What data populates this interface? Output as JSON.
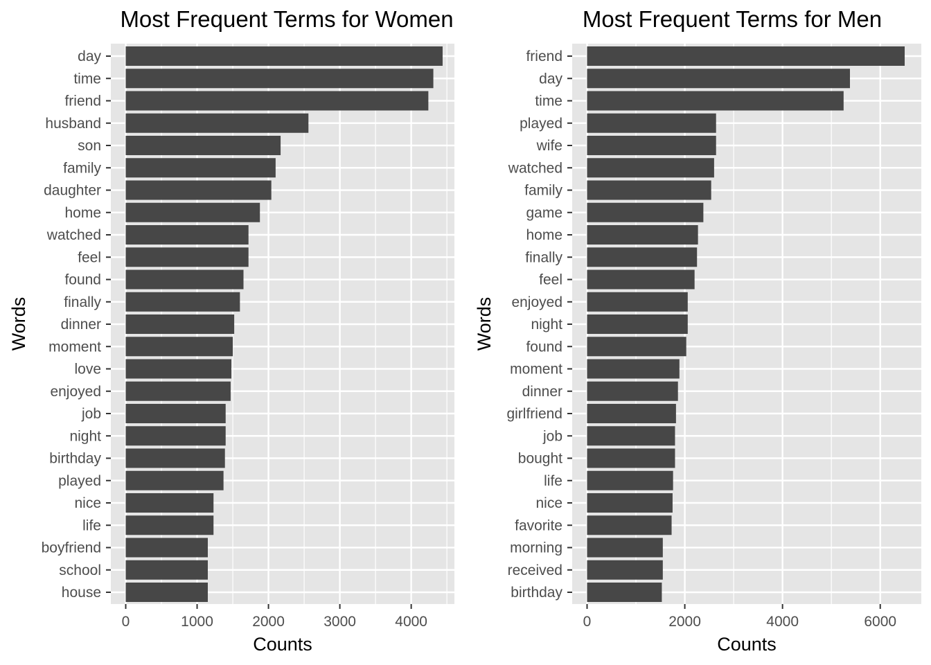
{
  "chart_data": [
    {
      "type": "bar",
      "orientation": "horizontal",
      "title": "Most Frequent Terms for Women",
      "xlabel": "Counts",
      "ylabel": "Words",
      "xlim": [
        0,
        4450
      ],
      "xticks": [
        0,
        1000,
        2000,
        3000,
        4000
      ],
      "grid": true,
      "categories": [
        "day",
        "time",
        "friend",
        "husband",
        "son",
        "family",
        "daughter",
        "home",
        "watched",
        "feel",
        "found",
        "finally",
        "dinner",
        "moment",
        "love",
        "enjoyed",
        "job",
        "night",
        "birthday",
        "played",
        "nice",
        "life",
        "boyfriend",
        "school",
        "house"
      ],
      "values": [
        4440,
        4310,
        4240,
        2560,
        2170,
        2100,
        2040,
        1880,
        1720,
        1720,
        1650,
        1600,
        1520,
        1500,
        1480,
        1470,
        1400,
        1400,
        1390,
        1370,
        1230,
        1230,
        1150,
        1150,
        1150
      ],
      "color": "#474747"
    },
    {
      "type": "bar",
      "orientation": "horizontal",
      "title": "Most Frequent Terms for Men",
      "xlabel": "Counts",
      "ylabel": "Words",
      "xlim": [
        0,
        6500
      ],
      "xticks": [
        0,
        2000,
        4000,
        6000
      ],
      "grid": true,
      "categories": [
        "friend",
        "day",
        "time",
        "played",
        "wife",
        "watched",
        "family",
        "game",
        "home",
        "finally",
        "feel",
        "enjoyed",
        "night",
        "found",
        "moment",
        "dinner",
        "girlfriend",
        "job",
        "bought",
        "life",
        "nice",
        "favorite",
        "morning",
        "received",
        "birthday"
      ],
      "values": [
        6500,
        5380,
        5250,
        2640,
        2640,
        2600,
        2540,
        2380,
        2270,
        2250,
        2200,
        2060,
        2060,
        2030,
        1890,
        1860,
        1820,
        1800,
        1800,
        1760,
        1750,
        1730,
        1550,
        1550,
        1530
      ],
      "color": "#474747"
    }
  ],
  "colors": {
    "panel_background": "#e5e5e5",
    "gridline": "#ffffff",
    "bar": "#474747",
    "tick_text": "#4d4d4d",
    "title_text": "#000000"
  }
}
